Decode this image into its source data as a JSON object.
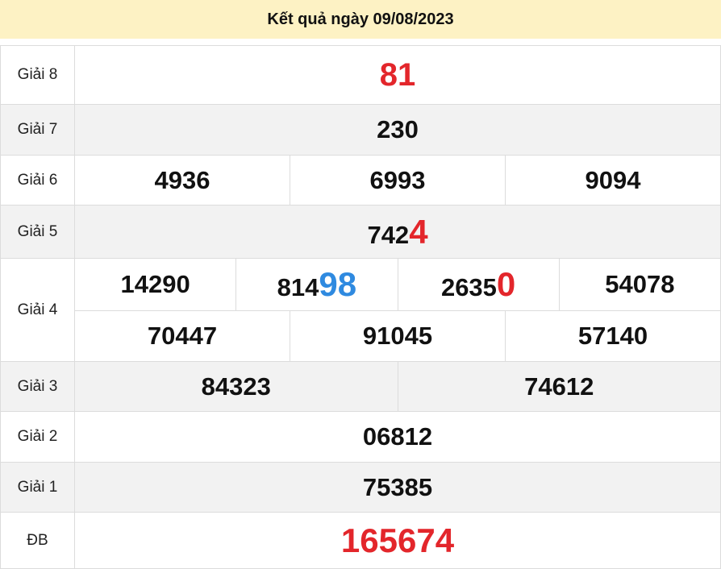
{
  "title": "Kết quả ngày 09/08/2023",
  "colors": {
    "header_bg": "#fdf2c4",
    "red": "#e3262b",
    "blue": "#2f8ae0"
  },
  "rows": [
    {
      "label": "Giải 8",
      "nums": [
        {
          "main": "",
          "tail": "81",
          "tail_color": "red"
        }
      ]
    },
    {
      "label": "Giải 7",
      "nums": [
        {
          "main": "230",
          "tail": ""
        }
      ]
    },
    {
      "label": "Giải 6",
      "nums": [
        {
          "main": "4936",
          "tail": ""
        },
        {
          "main": "6993",
          "tail": ""
        },
        {
          "main": "9094",
          "tail": ""
        }
      ]
    },
    {
      "label": "Giải 5",
      "nums": [
        {
          "main": "742",
          "tail": "4",
          "tail_color": "red"
        }
      ]
    },
    {
      "label": "Giải 4",
      "nums": [
        {
          "main": "14290",
          "tail": ""
        },
        {
          "main": "814",
          "tail": "98",
          "tail_color": "blue"
        },
        {
          "main": "2635",
          "tail": "0",
          "tail_color": "red"
        },
        {
          "main": "54078",
          "tail": ""
        },
        {
          "main": "70447",
          "tail": ""
        },
        {
          "main": "91045",
          "tail": ""
        },
        {
          "main": "57140",
          "tail": ""
        }
      ]
    },
    {
      "label": "Giải 3",
      "nums": [
        {
          "main": "84323",
          "tail": ""
        },
        {
          "main": "74612",
          "tail": ""
        }
      ]
    },
    {
      "label": "Giải 2",
      "nums": [
        {
          "main": "06812",
          "tail": ""
        }
      ]
    },
    {
      "label": "Giải 1",
      "nums": [
        {
          "main": "75385",
          "tail": ""
        }
      ]
    },
    {
      "label": "ĐB",
      "nums": [
        {
          "main": "",
          "tail": "165674",
          "tail_color": "red"
        }
      ]
    }
  ]
}
